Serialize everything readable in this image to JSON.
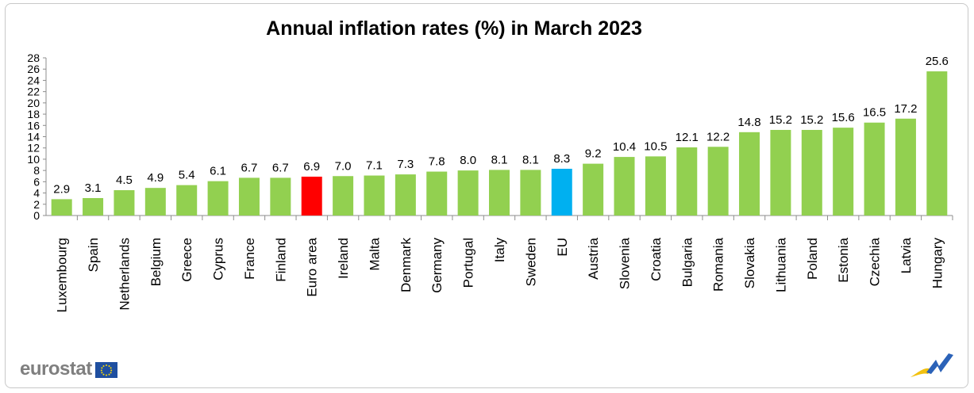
{
  "chart_data": {
    "type": "bar",
    "title": "Annual inflation rates (%)  in March 2023",
    "categories": [
      "Luxembourg",
      "Spain",
      "Netherlands",
      "Belgium",
      "Greece",
      "Cyprus",
      "France",
      "Finland",
      "Euro area",
      "Ireland",
      "Malta",
      "Denmark",
      "Germany",
      "Portugal",
      "Italy",
      "Sweden",
      "EU",
      "Austria",
      "Slovenia",
      "Croatia",
      "Bulgaria",
      "Romania",
      "Slovakia",
      "Lithuania",
      "Poland",
      "Estonia",
      "Czechia",
      "Latvia",
      "Hungary"
    ],
    "values": [
      2.9,
      3.1,
      4.5,
      4.9,
      5.4,
      6.1,
      6.7,
      6.7,
      6.9,
      7.0,
      7.1,
      7.3,
      7.8,
      8.0,
      8.1,
      8.1,
      8.3,
      9.2,
      10.4,
      10.5,
      12.1,
      12.2,
      14.8,
      15.2,
      15.2,
      15.6,
      16.5,
      17.2,
      25.6
    ],
    "value_labels": [
      "2.9",
      "3.1",
      "4.5",
      "4.9",
      "5.4",
      "6.1",
      "6.7",
      "6.7",
      "6.9",
      "7.0",
      "7.1",
      "7.3",
      "7.8",
      "8.0",
      "8.1",
      "8.1",
      "8.3",
      "9.2",
      "10.4",
      "10.5",
      "12.1",
      "12.2",
      "14.8",
      "15.2",
      "15.2",
      "15.6",
      "16.5",
      "17.2",
      "25.6"
    ],
    "yticks": [
      "0",
      "2",
      "4",
      "6",
      "8",
      "10",
      "12",
      "14",
      "16",
      "18",
      "20",
      "22",
      "24",
      "26",
      "28"
    ],
    "ylim": [
      0,
      28
    ],
    "xlabel": "",
    "ylabel": "",
    "grid": false,
    "colors": {
      "default": "#92d050",
      "Euro area": "#ff0000",
      "EU": "#00b0f0"
    }
  },
  "brand": {
    "name": "eurostat"
  }
}
